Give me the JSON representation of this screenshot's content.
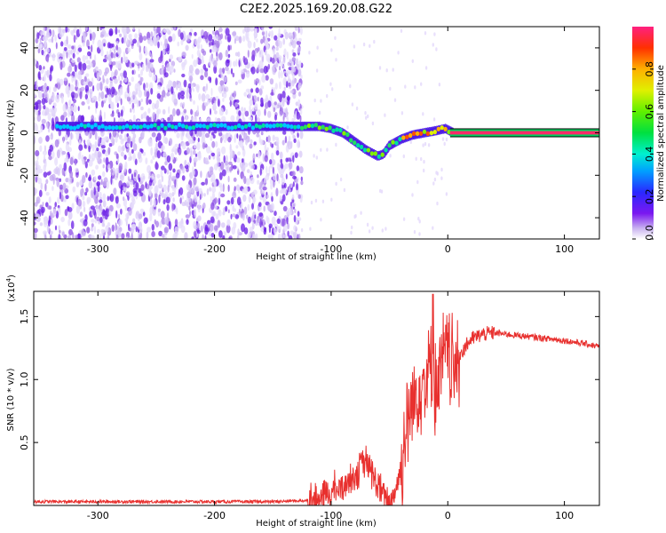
{
  "title": "C2E2.2025.169.20.08.G22",
  "chart_data": [
    {
      "type": "heatmap",
      "xlabel": "Height of straight line (km)",
      "ylabel": "Frequency (Hz)",
      "xlim": [
        -355,
        130
      ],
      "ylim": [
        -50,
        50
      ],
      "xticks": [
        -300,
        -200,
        -100,
        0,
        100
      ],
      "yticks": [
        -40,
        -20,
        0,
        20,
        40
      ],
      "colorbar": {
        "label": "Normalized spectral amplitude",
        "range": [
          0,
          1
        ],
        "ticks": [
          0.0,
          0.2,
          0.4,
          0.6,
          0.8
        ],
        "tick_labels": [
          "0.0",
          "0.2",
          "0.4",
          "0.6",
          "0.8"
        ]
      },
      "main_signal": {
        "x": [
          -335,
          -300,
          -250,
          -200,
          -150,
          -125,
          -110,
          -100,
          -90,
          -80,
          -70,
          -60,
          -55,
          -50,
          -40,
          -30,
          -20,
          -10,
          -2,
          5,
          130
        ],
        "y": [
          3,
          3,
          3,
          3,
          3,
          3,
          3,
          2,
          0,
          -4,
          -8,
          -11,
          -10,
          -6,
          -3,
          -1,
          0,
          1,
          2,
          0,
          0
        ]
      },
      "noise_region": [
        -355,
        -125
      ]
    },
    {
      "type": "line",
      "xlabel": "Height of straight line (km)",
      "ylabel": "SNR (10 * v/v)",
      "y_multiplier_label": "(x10",
      "y_multiplier_exp": "4",
      "y_multiplier_close": ")",
      "xlim": [
        -355,
        130
      ],
      "ylim": [
        0,
        1.7
      ],
      "xticks": [
        -300,
        -200,
        -100,
        0,
        100
      ],
      "yticks": [
        0.5,
        1.0,
        1.5
      ],
      "ytick_labels": [
        "0.5",
        "1.0",
        "1.5"
      ],
      "series": [
        {
          "color": "#e8302e",
          "x": [
            -355,
            -300,
            -250,
            -200,
            -150,
            -120,
            -110,
            -100,
            -90,
            -80,
            -70,
            -65,
            -60,
            -55,
            -50,
            -45,
            -40,
            -35,
            -30,
            -25,
            -20,
            -15,
            -10,
            -5,
            0,
            5,
            10,
            20,
            30,
            40,
            50,
            60,
            80,
            100,
            120,
            130
          ],
          "y": [
            0.03,
            0.03,
            0.03,
            0.03,
            0.03,
            0.04,
            0.06,
            0.1,
            0.15,
            0.25,
            0.35,
            0.25,
            0.15,
            0.08,
            0.02,
            0.12,
            0.3,
            0.65,
            0.8,
            0.95,
            1.0,
            1.1,
            0.9,
            1.1,
            1.25,
            1.05,
            1.2,
            1.32,
            1.36,
            1.37,
            1.36,
            1.35,
            1.33,
            1.31,
            1.28,
            1.26
          ]
        }
      ]
    }
  ]
}
